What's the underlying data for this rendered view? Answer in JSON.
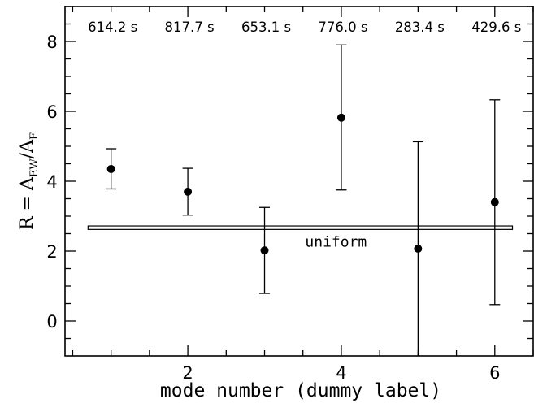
{
  "chart_data": {
    "type": "scatter",
    "xlabel": "mode number (dummy label)",
    "ylabel": {
      "main": "R = A",
      "sub1": "EW",
      "slash": "/A",
      "sub2": "F"
    },
    "xlim": [
      0.4,
      6.5
    ],
    "ylim": [
      -1.0,
      9.0
    ],
    "xticks_major": [
      2,
      4,
      6
    ],
    "yticks_major": [
      0,
      2,
      4,
      6,
      8
    ],
    "points": [
      {
        "x": 1,
        "y": 4.35,
        "err_low": 3.78,
        "err_high": 4.93,
        "label": "614.2 s"
      },
      {
        "x": 2,
        "y": 3.7,
        "err_low": 3.03,
        "err_high": 4.37,
        "label": "817.7 s"
      },
      {
        "x": 3,
        "y": 2.02,
        "err_low": 0.79,
        "err_high": 3.25,
        "label": "653.1 s"
      },
      {
        "x": 4,
        "y": 5.82,
        "err_low": 3.75,
        "err_high": 7.9,
        "label": "776.0 s"
      },
      {
        "x": 5,
        "y": 2.07,
        "err_low": -1.0,
        "err_high": 5.13,
        "label": "283.4 s"
      },
      {
        "x": 6,
        "y": 3.4,
        "err_low": 0.47,
        "err_high": 6.33,
        "label": "429.6 s"
      }
    ],
    "band": {
      "y_low": 2.62,
      "y_high": 2.72,
      "x_start": 0.7,
      "x_end": 6.23,
      "label": "uniform"
    },
    "grid": false
  }
}
